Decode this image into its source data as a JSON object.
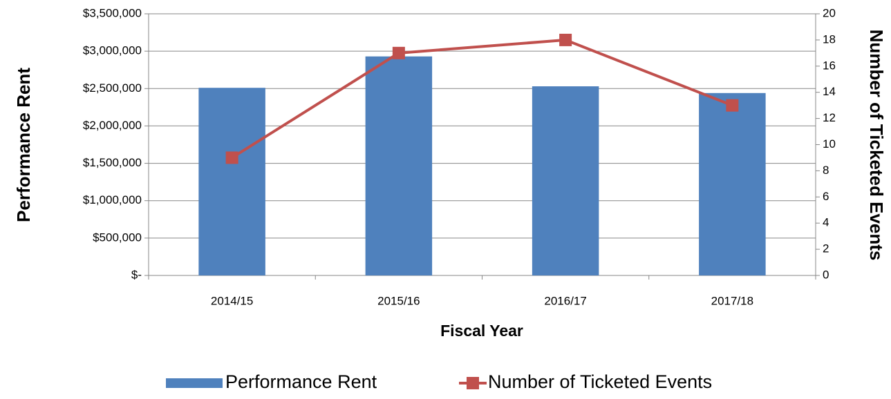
{
  "chart_data": {
    "type": "bar",
    "x_label": "Fiscal Year",
    "y_label": "Performance Rent",
    "y2_label": "Number of Ticketed Events",
    "categories": [
      "2014/15",
      "2015/16",
      "2016/17",
      "2017/18"
    ],
    "series": [
      {
        "name": "Performance Rent",
        "type": "bar",
        "color": "#4f81bd",
        "values": [
          2510000,
          2930000,
          2530000,
          2440000
        ]
      },
      {
        "name": "Number of Ticketed Events",
        "type": "line",
        "axis": "y2",
        "color": "#c0504d",
        "values": [
          9,
          17,
          18,
          13
        ]
      }
    ],
    "ylim": [
      0,
      3500000
    ],
    "yticks": [
      {
        "value": 0,
        "label": "$-"
      },
      {
        "value": 500000,
        "label": "$500,000"
      },
      {
        "value": 1000000,
        "label": "$1,000,000"
      },
      {
        "value": 1500000,
        "label": "$1,500,000"
      },
      {
        "value": 2000000,
        "label": "$2,000,000"
      },
      {
        "value": 2500000,
        "label": "$2,500,000"
      },
      {
        "value": 3000000,
        "label": "$3,000,000"
      },
      {
        "value": 3500000,
        "label": "$3,500,000"
      }
    ],
    "y2lim": [
      0,
      20
    ],
    "y2ticks": [
      0,
      2,
      4,
      6,
      8,
      10,
      12,
      14,
      16,
      18,
      20
    ],
    "grid": true,
    "legend": "bottom"
  }
}
